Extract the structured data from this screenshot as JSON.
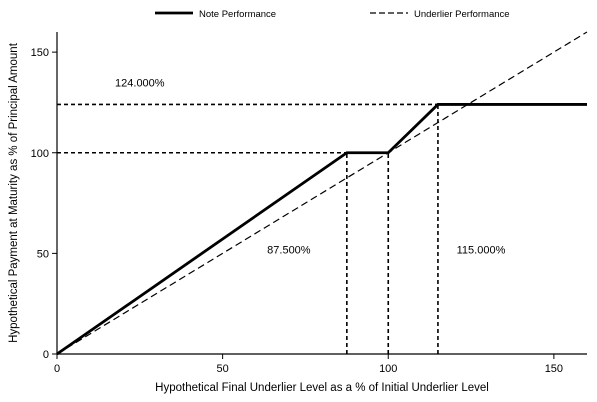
{
  "chart_data": {
    "type": "line",
    "title": "",
    "xlabel": "Hypothetical Final Underlier Level as a % of Initial Underlier Level",
    "ylabel": "Hypothetical Payment at Maturity as % of Principal Amount",
    "xlim": [
      0,
      160
    ],
    "ylim": [
      0,
      160
    ],
    "xticks": [
      0,
      50,
      100,
      150
    ],
    "yticks": [
      0,
      50,
      100,
      150
    ],
    "grid": false,
    "legend_position": "top",
    "series": [
      {
        "name": "Note Performance",
        "style": "solid",
        "x": [
          0,
          87.5,
          100,
          115,
          160
        ],
        "y": [
          0,
          100,
          100,
          124,
          124
        ]
      },
      {
        "name": "Underlier Performance",
        "style": "dashed",
        "x": [
          0,
          160
        ],
        "y": [
          0,
          160
        ]
      }
    ],
    "reference_lines": [
      {
        "orientation": "horizontal",
        "y": 124,
        "x_from": 0,
        "x_to": 115
      },
      {
        "orientation": "horizontal",
        "y": 100,
        "x_from": 0,
        "x_to": 87.5
      },
      {
        "orientation": "vertical",
        "x": 87.5,
        "y_from": 0,
        "y_to": 100
      },
      {
        "orientation": "vertical",
        "x": 100,
        "y_from": 0,
        "y_to": 100
      },
      {
        "orientation": "vertical",
        "x": 115,
        "y_from": 0,
        "y_to": 124
      }
    ],
    "annotations": [
      {
        "text": "124.000%",
        "x": 25,
        "y": 133
      },
      {
        "text": "87.500%",
        "x": 70,
        "y": 50
      },
      {
        "text": "115.000%",
        "x": 128,
        "y": 50
      }
    ],
    "colors": {
      "line": "#000000",
      "background": "#ffffff"
    }
  }
}
